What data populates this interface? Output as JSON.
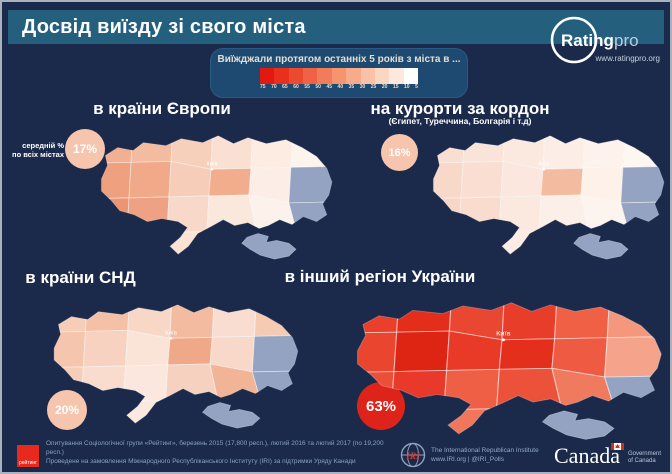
{
  "header": {
    "title": "Досвід виїзду зі свого міста"
  },
  "logo": {
    "name_bold": "Rating",
    "name_light": "pro",
    "url": "www.ratingpro.org"
  },
  "legend": {
    "title": "Виїжджали протягом останніх 5 років з міста  в ...",
    "scale_colors": [
      "#e31911",
      "#e8301c",
      "#ec4a2e",
      "#ef6243",
      "#f27b59",
      "#f5946f",
      "#f7ab8a",
      "#f9c2a6",
      "#fbd6c2",
      "#fde8dd",
      "#ffffff"
    ],
    "scale_labels": [
      "75",
      "70",
      "65",
      "60",
      "55",
      "50",
      "45",
      "40",
      "35",
      "30",
      "25",
      "20",
      "15",
      "10",
      "5"
    ]
  },
  "avg_label": {
    "line1": "середній %",
    "line2": "по всіх містах"
  },
  "panels": [
    {
      "id": "europe",
      "title": "в країни Європи",
      "subtitle": "",
      "average": "17%",
      "circle_color": "#f6c5ad",
      "city_label": "Київ",
      "nodata_color": "#94a3c2",
      "region_colors": [
        "#f2b092",
        "#f3bca0",
        "#f7d0bc",
        "#f9e0d3",
        "#fcece2",
        "#fdf4ee",
        "#efa07e",
        "#f0aa89",
        "#f6cdb8",
        "#f1ad8c",
        "#fceee6",
        "#94a3c2",
        "#ed9471",
        "#efa183",
        "#f8d8c8",
        "#fbe8dd",
        "#fdf2eb",
        "#94a3c2",
        "#f5c6ae",
        "#f7d1bf",
        "#fae2d4",
        "#fcebe2",
        "#94a3c2",
        "#94a3c2"
      ]
    },
    {
      "id": "resorts",
      "title": "на курорти за кордон",
      "subtitle": "(Єгипет, Туреччина, Болгарія і т.д)",
      "average": "16%",
      "circle_color": "#f6c5ad",
      "city_label": "Київ",
      "nodata_color": "#94a3c2",
      "region_colors": [
        "#f9dfd2",
        "#fae4da",
        "#fbe9e0",
        "#fceee7",
        "#fdf2ec",
        "#fdf6f1",
        "#f8d8c9",
        "#f9ded1",
        "#fbe7dd",
        "#f3bb9f",
        "#fdf1ea",
        "#94a3c2",
        "#f8d6c6",
        "#f9dccd",
        "#fbe8de",
        "#fcefe8",
        "#fdf4ee",
        "#94a3c2",
        "#fae2d5",
        "#fae6db",
        "#fcece4",
        "#fdf1eb",
        "#94a3c2",
        "#94a3c2"
      ]
    },
    {
      "id": "cis",
      "title": "в країни СНД",
      "subtitle": "",
      "average": "20%",
      "circle_color": "#f6c5ad",
      "city_label": "Київ",
      "nodata_color": "#94a3c2",
      "region_colors": [
        "#f6cdb6",
        "#f4c1a6",
        "#f8d7c7",
        "#f3bb9f",
        "#f9ddd0",
        "#f6cbb4",
        "#f5c6ad",
        "#f7d2c0",
        "#fae3d7",
        "#f0a988",
        "#f8d8c9",
        "#94a3c2",
        "#f6ceb8",
        "#f9dccd",
        "#fbe7dd",
        "#f7d1bf",
        "#f2b496",
        "#94a3c2",
        "#f8d7c8",
        "#fae1d4",
        "#fbe9e0",
        "#f9dbcc",
        "#94a3c2",
        "#94a3c2"
      ]
    },
    {
      "id": "ukraine-region",
      "title": "в інший регіон України",
      "subtitle": "",
      "average": "63%",
      "circle_color": "#de231a",
      "city_label": "Київ",
      "nodata_color": "#94a3c2",
      "region_colors": [
        "#e93f2b",
        "#e42e1c",
        "#ea4733",
        "#e83d29",
        "#ef6044",
        "#f4977c",
        "#ea452f",
        "#de2412",
        "#e83a26",
        "#e42f1d",
        "#ee5b42",
        "#f5a38a",
        "#ec4f38",
        "#e8392a",
        "#ee5f46",
        "#ec523a",
        "#f07a5e",
        "#94a3c2",
        "#ef6850",
        "#ee6149",
        "#f0765c",
        "#f28a70",
        "#94a3c2",
        "#94a3c2"
      ]
    }
  ],
  "footer": {
    "rating_logo_text": "рейтинг",
    "line1": "Опитування Соціологічної групи «Рейтинг», березень 2015 (17,800 респ.), лютий 2016 та лютий 2017 (по 19,200 респ.)",
    "line2": "Проведене на замовлення Міжнародного Республіканського Інституту (IRI) за підтримки Уряду Канади",
    "iri": {
      "abbr": "IRI",
      "line1": "The International Republican Institute",
      "line2": "www.IRI.org | @IRI_Polls"
    },
    "canada": {
      "wordmark": "Canada",
      "gov_line1": "Government",
      "gov_line2": "of Canada"
    }
  },
  "chart_data": {
    "type": "heatmap",
    "title": "Досвід виїзду зі свого міста",
    "subtitle": "Виїжджали протягом останніх 5 років з міста в ...",
    "categories": [
      "в країни Європи",
      "на курорти за кордон (Єгипет, Туреччина, Болгарія і т.д)",
      "в країни СНД",
      "в інший регіон України"
    ],
    "values": [
      17,
      16,
      20,
      63
    ],
    "unit": "%",
    "values_note": "середній % по всіх містах",
    "legend_scale": [
      75,
      70,
      65,
      60,
      55,
      50,
      45,
      40,
      35,
      30,
      25,
      20,
      15,
      10,
      5
    ],
    "geometry": "four small-multiple choropleth maps of Ukraine oblasts; west regions darkest for Europe map, whole map red for inner-Ukraine map; Crimea and east Donbas shown gray (no data)",
    "legend_position": "top-center"
  }
}
